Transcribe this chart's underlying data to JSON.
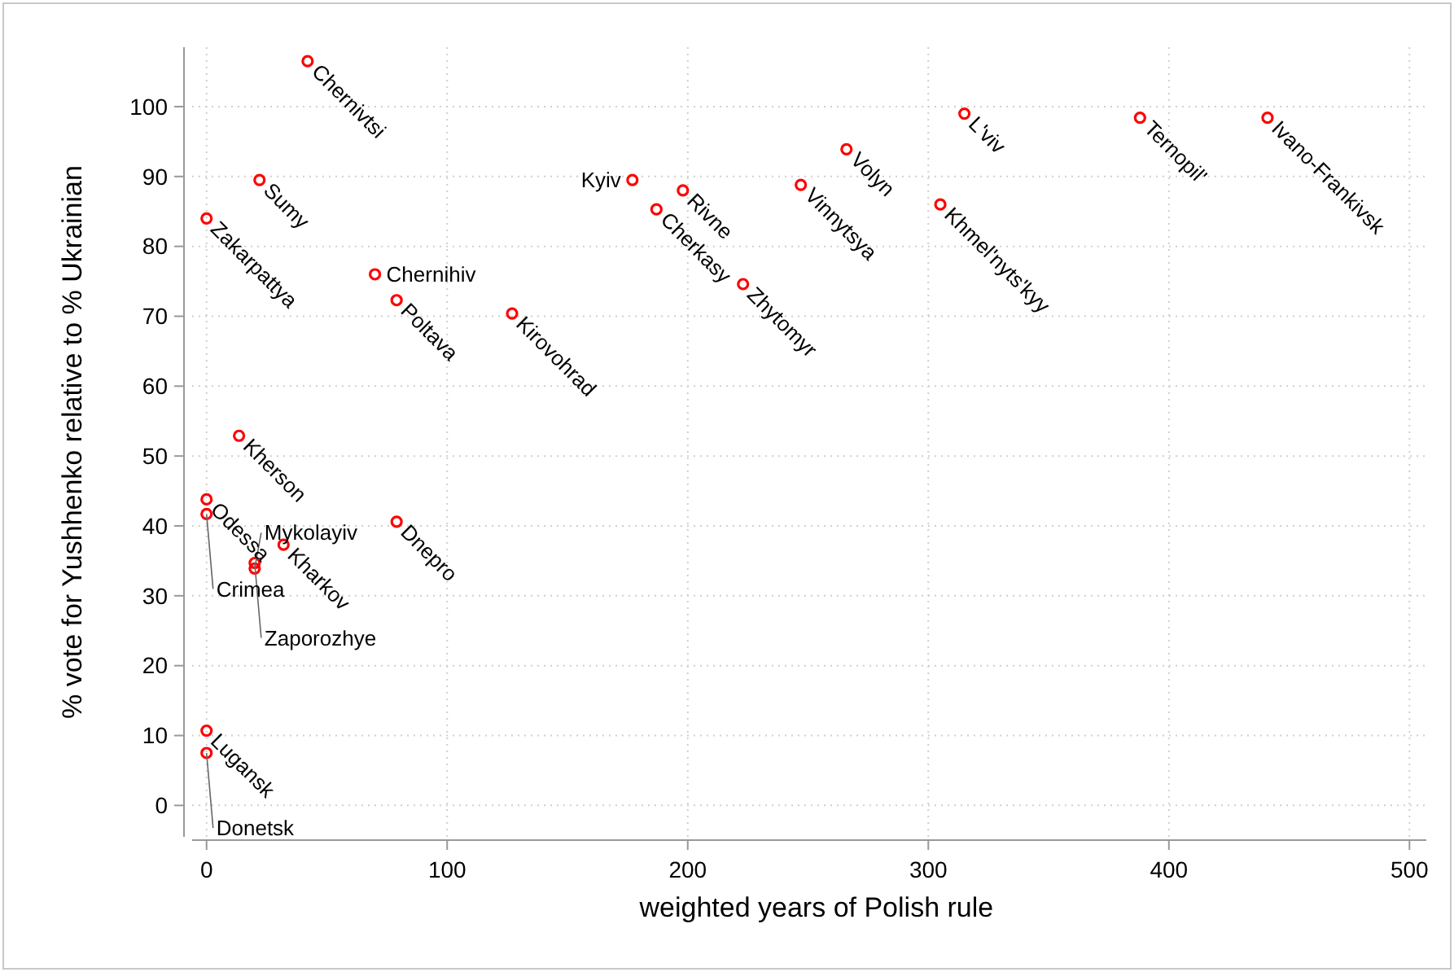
{
  "chart_data": {
    "type": "scatter",
    "xlabel": "weighted years of Polish rule",
    "ylabel": "% vote for Yushhenko relative to % Ukrainian",
    "xlim": [
      -6,
      507
    ],
    "ylim": [
      -4.5,
      108.5
    ],
    "xticks": [
      0,
      100,
      200,
      300,
      400,
      500
    ],
    "yticks": [
      0,
      10,
      20,
      30,
      40,
      50,
      60,
      70,
      80,
      90,
      100
    ],
    "grid": true,
    "marker": "circle",
    "series": [
      {
        "color": "#ff0000",
        "x": [
          42,
          22,
          0,
          70,
          79,
          127,
          177,
          198,
          187,
          223,
          247,
          266,
          315,
          305,
          388,
          441,
          13.5,
          0,
          0,
          32,
          20,
          20,
          79,
          0,
          0
        ],
        "values": [
          106.5,
          89.5,
          84,
          76,
          72.3,
          70.4,
          89.5,
          88,
          85.3,
          74.6,
          88.8,
          93.9,
          99,
          86,
          98.4,
          98.4,
          52.9,
          43.8,
          41.7,
          37.3,
          34.7,
          33.9,
          40.6,
          10.7,
          7.5
        ]
      }
    ],
    "annotations": [
      {
        "text": "Chernivtsi",
        "x": 42,
        "y": 106.5
      },
      {
        "text": "Sumy",
        "x": 22,
        "y": 89.5
      },
      {
        "text": "Zakarpattya",
        "x": 0,
        "y": 84
      },
      {
        "text": "Chernihiv",
        "x": 70,
        "y": 76
      },
      {
        "text": "Poltava",
        "x": 79,
        "y": 72.3
      },
      {
        "text": "Kirovohrad",
        "x": 127,
        "y": 70.4
      },
      {
        "text": "Kyiv",
        "x": 177,
        "y": 89.5
      },
      {
        "text": "Rivne",
        "x": 198,
        "y": 88
      },
      {
        "text": "Cherkasy",
        "x": 187,
        "y": 85.3
      },
      {
        "text": "Zhytomyr",
        "x": 223,
        "y": 74.6
      },
      {
        "text": "Vinnytsya",
        "x": 247,
        "y": 88.8
      },
      {
        "text": "Volyn",
        "x": 266,
        "y": 93.9
      },
      {
        "text": "L'viv",
        "x": 315,
        "y": 99
      },
      {
        "text": "Khmel'nyts'kyy",
        "x": 305,
        "y": 86
      },
      {
        "text": "Ternopil'",
        "x": 388,
        "y": 98.4
      },
      {
        "text": "Ivano-Frankivsk",
        "x": 441,
        "y": 98.4
      },
      {
        "text": "Kherson",
        "x": 13.5,
        "y": 52.9
      },
      {
        "text": "Odessa",
        "x": 0,
        "y": 43.8
      },
      {
        "text": "Crimea",
        "x": 0,
        "y": 41.7
      },
      {
        "text": "Kharkov",
        "x": 32,
        "y": 37.3
      },
      {
        "text": "Zaporozhye",
        "x": 20,
        "y": 34.7
      },
      {
        "text": "Mykolayiv",
        "x": 20,
        "y": 33.9
      },
      {
        "text": "Dnepro",
        "x": 79,
        "y": 40.6
      },
      {
        "text": "Lugansk",
        "x": 0,
        "y": 10.7
      },
      {
        "text": "Donetsk",
        "x": 0,
        "y": 7.5
      }
    ]
  }
}
